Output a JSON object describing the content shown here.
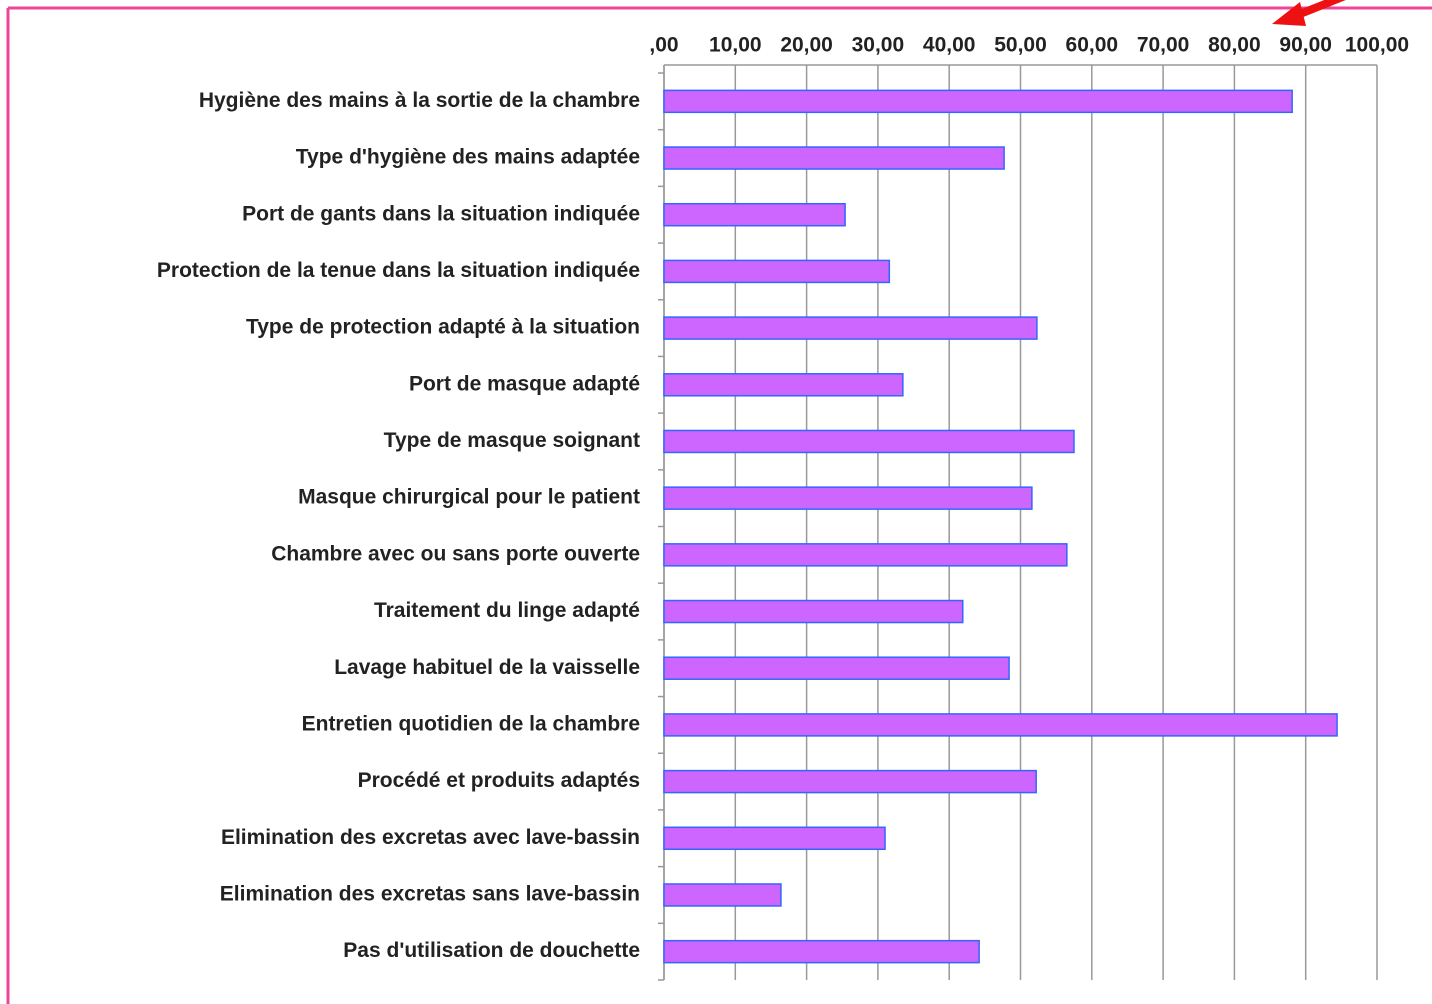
{
  "chart_data": {
    "type": "barh",
    "categories": [
      "Hygiène des mains à la sortie de la chambre",
      "Type d'hygiène des mains adaptée",
      "Port de gants dans la situation indiquée",
      "Protection de la tenue dans la situation indiquée",
      "Type de protection adapté à la situation",
      "Port de masque adapté",
      "Type de masque soignant",
      "Masque chirurgical pour le patient",
      "Chambre avec ou sans porte ouverte",
      "Traitement du linge adapté",
      "Lavage habituel de la vaisselle",
      "Entretien quotidien de la chambre",
      "Procédé et produits adaptés",
      "Elimination des excretas avec lave-bassin",
      "Elimination des excretas sans lave-bassin",
      "Pas d'utilisation de douchette"
    ],
    "values": [
      88.1,
      47.7,
      25.4,
      31.6,
      52.3,
      33.5,
      57.5,
      51.6,
      56.5,
      41.9,
      48.4,
      94.4,
      52.2,
      31.0,
      16.4,
      44.2
    ],
    "color": "#cc66ff",
    "edgecolor": "#3366ff",
    "xlim": [
      0,
      100
    ],
    "xticks": [
      {
        "value": 0,
        "label": ",00"
      },
      {
        "value": 10,
        "label": "10,00"
      },
      {
        "value": 20,
        "label": "20,00"
      },
      {
        "value": 30,
        "label": "30,00"
      },
      {
        "value": 40,
        "label": "40,00"
      },
      {
        "value": 50,
        "label": "50,00"
      },
      {
        "value": 60,
        "label": "60,00"
      },
      {
        "value": 70,
        "label": "70,00"
      },
      {
        "value": 80,
        "label": "80,00"
      },
      {
        "value": 90,
        "label": "90,00"
      },
      {
        "value": 100,
        "label": "100,00"
      }
    ],
    "grid": true
  }
}
